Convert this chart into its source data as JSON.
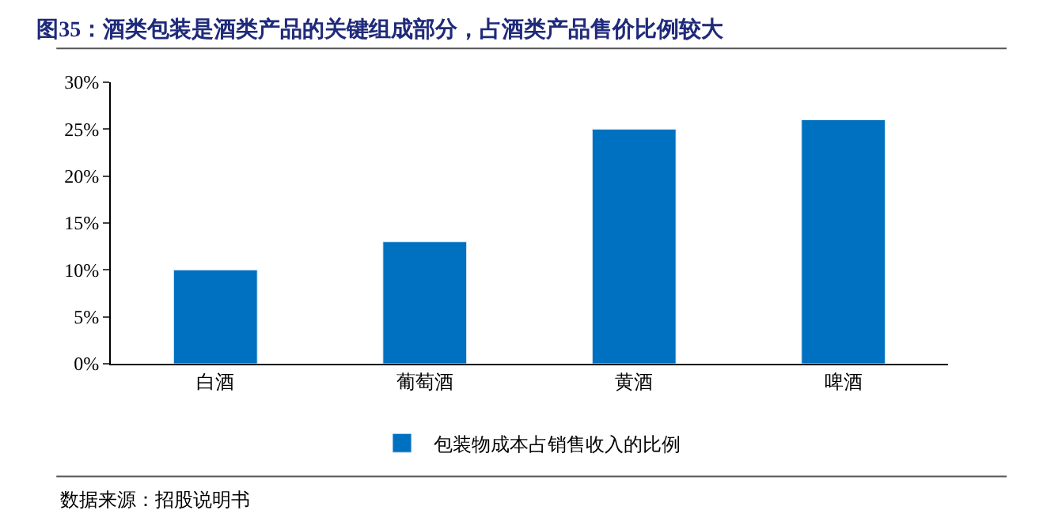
{
  "chart_data": {
    "type": "bar",
    "title": "图35：酒类包装是酒类产品的关键组成部分，占酒类产品售价比例较大",
    "categories": [
      "白酒",
      "葡萄酒",
      "黄酒",
      "啤酒"
    ],
    "series": [
      {
        "name": "包装物成本占销售收入的比例",
        "color": "#0070c0",
        "values": [
          10,
          13,
          25,
          26
        ]
      }
    ],
    "ylim": [
      0,
      30
    ],
    "yticks": [
      {
        "value": 0,
        "label": "0%"
      },
      {
        "value": 5,
        "label": "5%"
      },
      {
        "value": 10,
        "label": "10%"
      },
      {
        "value": 15,
        "label": "15%"
      },
      {
        "value": 20,
        "label": "20%"
      },
      {
        "value": 25,
        "label": "25%"
      },
      {
        "value": 30,
        "label": "30%"
      }
    ],
    "legend": "bottom",
    "annotations": [
      "数据来源：招股说明书"
    ]
  }
}
